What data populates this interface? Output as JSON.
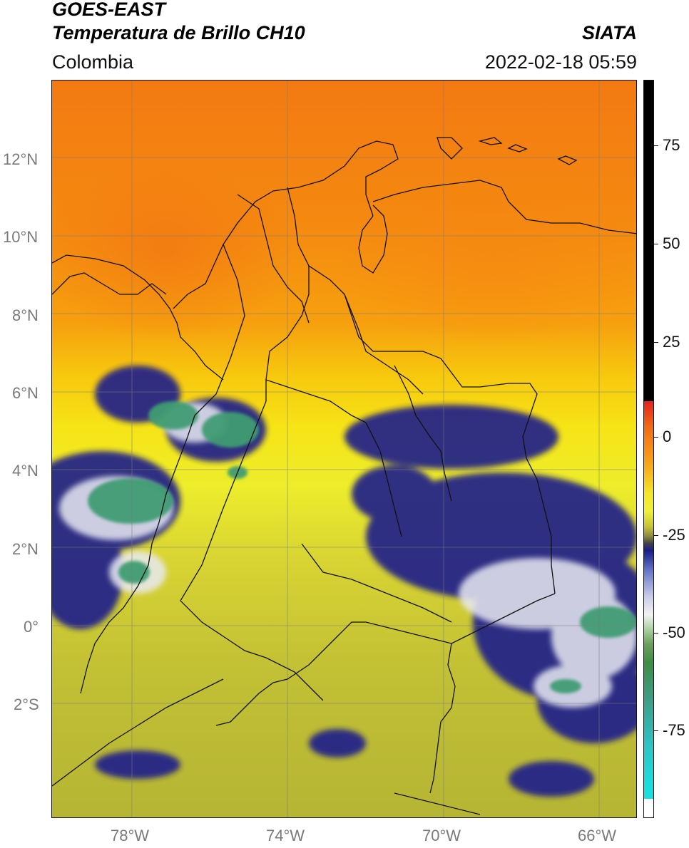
{
  "header": {
    "satellite": "GOES-EAST",
    "product": "Temperatura de Brillo CH10",
    "region": "Colombia",
    "agency": "SIATA",
    "datetime": "2022-02-18 05:59"
  },
  "map": {
    "lat_labels": [
      "12°N",
      "10°N",
      "8°N",
      "6°N",
      "4°N",
      "2°N",
      "0°",
      "2°S"
    ],
    "lon_labels": [
      "78°W",
      "74°W",
      "70°W",
      "66°W"
    ],
    "colors": {
      "warm": "#f37a12",
      "mid": "#eded2b",
      "cool": "#b6b534",
      "cloud_blue": "#1a1c8c",
      "cloud_white": "#e8e9f2",
      "cloud_green": "#3f9c73",
      "coastline": "#111111"
    }
  },
  "colorbar": {
    "ticks": [
      {
        "label": "75",
        "value": 75
      },
      {
        "label": "50",
        "value": 50
      },
      {
        "label": "25",
        "value": 25
      },
      {
        "label": "0",
        "value": 0
      },
      {
        "label": "-25",
        "value": -25
      },
      {
        "label": "-50",
        "value": -50
      },
      {
        "label": "-75",
        "value": -75
      }
    ],
    "range": [
      -95,
      90
    ]
  }
}
